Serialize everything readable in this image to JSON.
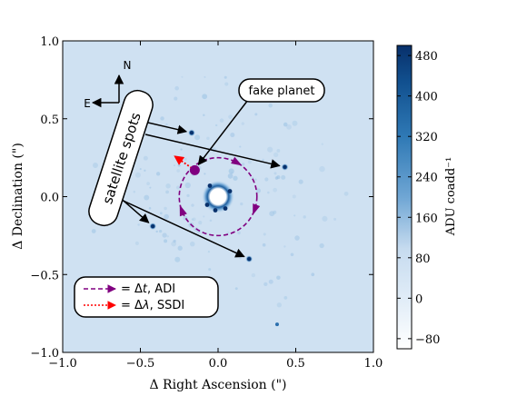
{
  "chart_data": {
    "type": "heatmap",
    "xlabel": "Δ Right Ascension (\")",
    "ylabel": "Δ Declination (\")",
    "xlim": [
      -1.0,
      1.0
    ],
    "ylim": [
      -1.0,
      1.0
    ],
    "x_ticks": [
      "−1.0",
      "−0.5",
      "0.0",
      "0.5",
      "1.0"
    ],
    "y_ticks": [
      "−1.0",
      "−0.5",
      "0.0",
      "0.5",
      "1.0"
    ],
    "colorbar": {
      "label": "ADU coadd⁻¹",
      "min": -100,
      "max": 500,
      "ticks": [
        "480",
        "400",
        "320",
        "240",
        "160",
        "80",
        "0",
        "−80"
      ],
      "colors": {
        "low": "#ffffff",
        "mid": "#6fa6d4",
        "high": "#08306b"
      }
    },
    "compass": {
      "north": "N",
      "east": "E"
    },
    "annotations": {
      "satellite_spots": "satellite spots",
      "fake_planet": "fake planet",
      "legend_adi_prefix": "= Δ",
      "legend_adi_var": "t",
      "legend_adi_suffix": ",  ADI",
      "legend_ssdi_prefix": "= Δ",
      "legend_ssdi_var": "λ",
      "legend_ssdi_suffix": ",  SSDI"
    },
    "satellite_spots": [
      {
        "x": -0.17,
        "y": 0.41
      },
      {
        "x": 0.43,
        "y": 0.19
      },
      {
        "x": -0.42,
        "y": -0.19
      },
      {
        "x": 0.2,
        "y": -0.4
      }
    ],
    "fake_planet": {
      "x": -0.15,
      "y": 0.17
    },
    "star_center": {
      "x": 0.0,
      "y": 0.0
    },
    "ssdi_arrow": {
      "from": {
        "x": -0.15,
        "y": 0.17
      },
      "to": {
        "x": -0.28,
        "y": 0.26
      }
    },
    "adi_circle_radius": 0.25,
    "extra_speckles": [
      {
        "x": 0.38,
        "y": -0.82
      }
    ],
    "colors": {
      "accent_purple": "#800080",
      "accent_red": "#ff0000",
      "background_map": "#cfe1f2"
    }
  }
}
